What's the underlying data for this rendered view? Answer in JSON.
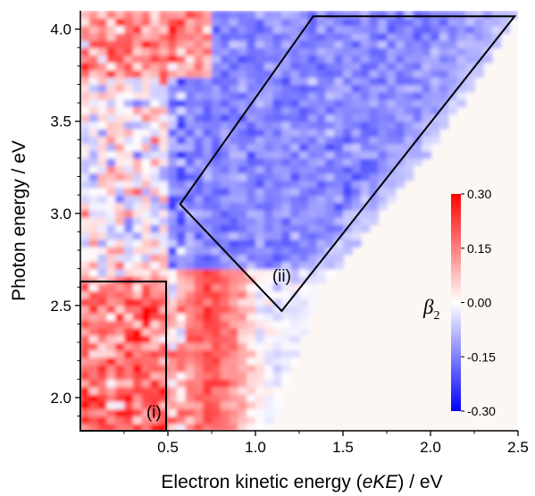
{
  "chart_data": {
    "type": "heatmap",
    "xlabel_parts": [
      "Electron kinetic energy (",
      "eKE",
      ") / eV"
    ],
    "ylabel": "Photon energy / eV",
    "xlim": [
      0.0,
      2.5
    ],
    "ylim": [
      1.82,
      4.1
    ],
    "x_ticks": [
      {
        "value": 0.5,
        "label": "0.5"
      },
      {
        "value": 1.0,
        "label": "1.0"
      },
      {
        "value": 1.5,
        "label": "1.5"
      },
      {
        "value": 2.0,
        "label": "2.0"
      },
      {
        "value": 2.5,
        "label": "2.5"
      }
    ],
    "y_ticks": [
      {
        "value": 2.0,
        "label": "2.0"
      },
      {
        "value": 2.5,
        "label": "2.5"
      },
      {
        "value": 3.0,
        "label": "3.0"
      },
      {
        "value": 3.5,
        "label": "3.5"
      },
      {
        "value": 4.0,
        "label": "4.0"
      }
    ],
    "colorbar": {
      "label_symbol": "β",
      "label_subscript": "2",
      "range": [
        -0.3,
        0.3
      ],
      "colors": {
        "low": "#0000ff",
        "mid": "#ffffff",
        "high": "#ff0000"
      },
      "ticks": [
        {
          "value": 0.3,
          "label": "0.30"
        },
        {
          "value": 0.15,
          "label": "0.15"
        },
        {
          "value": 0.0,
          "label": "0.00"
        },
        {
          "value": -0.15,
          "label": "-0.15"
        },
        {
          "value": -0.3,
          "label": "-0.30"
        }
      ]
    },
    "regions": [
      {
        "label": "(i)",
        "label_at": [
          0.42,
          1.89
        ],
        "polygon": [
          [
            0.0,
            1.82
          ],
          [
            0.0,
            2.63
          ],
          [
            0.49,
            2.63
          ],
          [
            0.49,
            1.82
          ]
        ]
      },
      {
        "label": "(ii)",
        "label_at": [
          1.15,
          2.63
        ],
        "polygon": [
          [
            0.57,
            3.05
          ],
          [
            1.33,
            4.07
          ],
          [
            2.48,
            4.07
          ],
          [
            1.15,
            2.47
          ]
        ]
      }
    ],
    "signal_edge": {
      "description_free": true,
      "points": [
        [
          1.07,
          1.82
        ],
        [
          1.35,
          2.6
        ],
        [
          1.95,
          3.3
        ],
        [
          2.45,
          4.05
        ]
      ]
    }
  }
}
